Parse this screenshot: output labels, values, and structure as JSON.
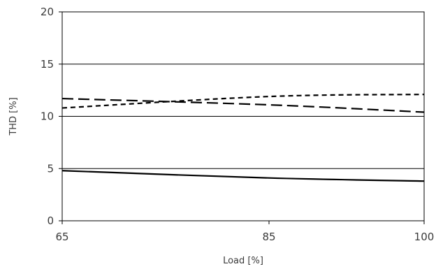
{
  "chart_data": {
    "type": "line",
    "title": "",
    "xlabel": "Load [%]",
    "ylabel": "THD [%]",
    "xlim": [
      65,
      100
    ],
    "ylim": [
      0,
      20
    ],
    "x_ticks": [
      65,
      85,
      100
    ],
    "y_ticks": [
      0,
      5,
      10,
      15,
      20
    ],
    "grid": "horizontal",
    "legend": "none",
    "series": [
      {
        "style": "solid",
        "color": "#000000",
        "x": [
          65,
          85,
          100
        ],
        "y": [
          4.8,
          4.1,
          3.8
        ]
      },
      {
        "style": "long-dash",
        "color": "#000000",
        "x": [
          65,
          85,
          100
        ],
        "y": [
          11.7,
          11.1,
          10.4
        ]
      },
      {
        "style": "short-dash",
        "color": "#000000",
        "x": [
          65,
          85,
          100
        ],
        "y": [
          10.8,
          11.9,
          12.1
        ]
      }
    ]
  }
}
